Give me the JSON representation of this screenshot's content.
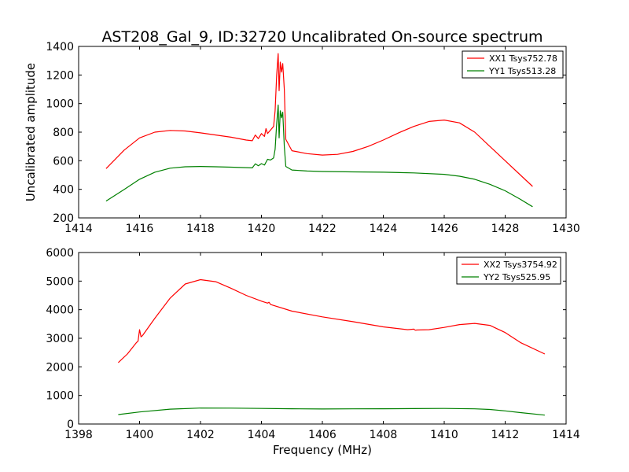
{
  "title": "AST208_Gal_9, ID:32720 Uncalibrated On-source spectrum",
  "xlabel": "Frequency (MHz)",
  "ylabel": "Uncalibrated amplitude",
  "chart_data": [
    {
      "type": "line",
      "title": "AST208_Gal_9, ID:32720 Uncalibrated On-source spectrum",
      "xlabel": "",
      "ylabel": "Uncalibrated amplitude",
      "xlim": [
        1414,
        1430
      ],
      "ylim": [
        200,
        1400
      ],
      "xticks": [
        "1414",
        "1416",
        "1418",
        "1420",
        "1422",
        "1424",
        "1426",
        "1428",
        "1430"
      ],
      "yticks": [
        "200",
        "400",
        "600",
        "800",
        "1000",
        "1200",
        "1400"
      ],
      "grid": false,
      "legend_position": "top-right",
      "series": [
        {
          "name": "XX1 Tsys752.78",
          "color": "#ff0000",
          "x": [
            1414.9,
            1415.5,
            1416.0,
            1416.5,
            1417.0,
            1417.5,
            1418.0,
            1418.5,
            1419.0,
            1419.5,
            1419.7,
            1419.8,
            1419.9,
            1420.0,
            1420.1,
            1420.15,
            1420.2,
            1420.3,
            1420.4,
            1420.45,
            1420.5,
            1420.55,
            1420.58,
            1420.62,
            1420.66,
            1420.7,
            1420.75,
            1420.8,
            1421.0,
            1421.5,
            1422.0,
            1422.5,
            1423.0,
            1423.5,
            1424.0,
            1424.5,
            1425.0,
            1425.5,
            1426.0,
            1426.5,
            1427.0,
            1427.5,
            1428.0,
            1428.5,
            1428.9
          ],
          "y": [
            545,
            675,
            760,
            800,
            812,
            808,
            795,
            780,
            765,
            745,
            740,
            780,
            755,
            790,
            770,
            825,
            790,
            815,
            840,
            950,
            1200,
            1350,
            1090,
            1290,
            1220,
            1280,
            1100,
            750,
            670,
            650,
            640,
            645,
            665,
            700,
            745,
            795,
            840,
            875,
            885,
            865,
            800,
            700,
            600,
            500,
            420
          ]
        },
        {
          "name": "YY1 Tsys513.28",
          "color": "#008000",
          "x": [
            1414.9,
            1415.5,
            1416.0,
            1416.5,
            1417.0,
            1417.5,
            1418.0,
            1418.5,
            1419.0,
            1419.5,
            1419.7,
            1419.8,
            1419.9,
            1420.0,
            1420.1,
            1420.2,
            1420.3,
            1420.4,
            1420.45,
            1420.5,
            1420.55,
            1420.58,
            1420.62,
            1420.66,
            1420.7,
            1420.75,
            1420.8,
            1421.0,
            1421.5,
            1422.0,
            1423.0,
            1424.0,
            1425.0,
            1426.0,
            1426.5,
            1427.0,
            1427.5,
            1428.0,
            1428.5,
            1428.9
          ],
          "y": [
            318,
            400,
            470,
            520,
            548,
            558,
            560,
            558,
            555,
            552,
            550,
            578,
            565,
            580,
            570,
            610,
            605,
            620,
            680,
            860,
            990,
            760,
            950,
            900,
            940,
            700,
            560,
            535,
            528,
            525,
            522,
            520,
            515,
            505,
            492,
            470,
            435,
            390,
            330,
            278
          ]
        }
      ]
    },
    {
      "type": "line",
      "title": "",
      "xlabel": "Frequency (MHz)",
      "ylabel": "",
      "xlim": [
        1398,
        1414
      ],
      "ylim": [
        0,
        6000
      ],
      "xticks": [
        "1398",
        "1400",
        "1402",
        "1404",
        "1406",
        "1408",
        "1410",
        "1412",
        "1414"
      ],
      "yticks": [
        "0",
        "1000",
        "2000",
        "3000",
        "4000",
        "5000",
        "6000"
      ],
      "grid": false,
      "legend_position": "top-right",
      "series": [
        {
          "name": "XX2 Tsys3754.92",
          "color": "#ff0000",
          "x": [
            1399.3,
            1399.6,
            1399.9,
            1399.95,
            1400.0,
            1400.05,
            1400.1,
            1400.5,
            1401.0,
            1401.5,
            1402.0,
            1402.5,
            1403.0,
            1403.5,
            1404.0,
            1404.2,
            1404.25,
            1404.3,
            1405.0,
            1406.0,
            1407.0,
            1408.0,
            1408.8,
            1409.0,
            1409.05,
            1409.1,
            1409.5,
            1410.0,
            1410.5,
            1411.0,
            1411.5,
            1412.0,
            1412.5,
            1413.3
          ],
          "y": [
            2150,
            2450,
            2850,
            2900,
            3300,
            3050,
            3100,
            3700,
            4400,
            4900,
            5050,
            4980,
            4750,
            4500,
            4300,
            4230,
            4260,
            4180,
            3950,
            3750,
            3580,
            3400,
            3300,
            3320,
            3280,
            3290,
            3300,
            3380,
            3480,
            3520,
            3450,
            3200,
            2850,
            2450
          ]
        },
        {
          "name": "YY2 Tsys525.95",
          "color": "#008000",
          "x": [
            1399.3,
            1400.0,
            1401.0,
            1402.0,
            1403.0,
            1404.0,
            1405.0,
            1406.0,
            1407.0,
            1408.0,
            1409.0,
            1410.0,
            1411.0,
            1411.5,
            1412.0,
            1412.5,
            1413.3
          ],
          "y": [
            330,
            420,
            520,
            560,
            555,
            545,
            535,
            525,
            530,
            535,
            540,
            545,
            530,
            510,
            460,
            400,
            310
          ]
        }
      ]
    }
  ]
}
